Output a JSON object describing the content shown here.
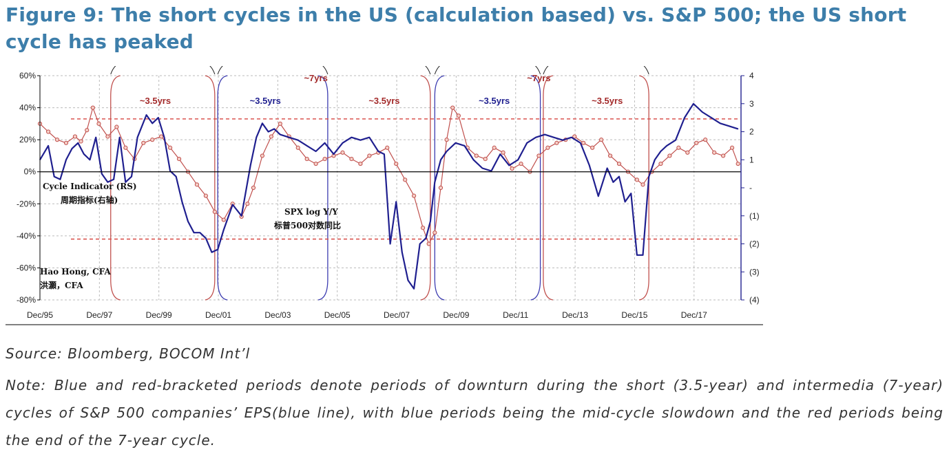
{
  "header": {
    "title": "Figure 9: The short cycles in the US (calculation based) vs. S&P 500; the US short cycle has peaked"
  },
  "footer": {
    "source": "Source: Bloomberg, BOCOM Int’l",
    "note": "Note: Blue and red-bracketed periods denote periods of downturn during the short (3.5-year) and intermedia (7-year) cycles of S&P 500 companies’ EPS(blue line), with blue periods being the mid-cycle slowdown and the red periods being the end of the 7-year cycle."
  },
  "chart_data": {
    "type": "line",
    "colors": {
      "spx": "#c0504d",
      "cycle": "#1f1f8f",
      "cycle_blue_bracket": "#3b3bb0",
      "cycle_red_bracket": "#c0504d",
      "threshold": "#d9534f"
    },
    "x_ticks": [
      "Dec/95",
      "Dec/97",
      "Dec/99",
      "Dec/01",
      "Dec/03",
      "Dec/05",
      "Dec/07",
      "Dec/09",
      "Dec/11",
      "Dec/13",
      "Dec/15",
      "Dec/17"
    ],
    "xlim": [
      1995.92,
      2019.5
    ],
    "y_left": {
      "ticks": [
        "60%",
        "40%",
        "20%",
        "0%",
        "-20%",
        "-40%",
        "-60%",
        "-80%"
      ],
      "range": [
        -80,
        60
      ]
    },
    "y_right": {
      "ticks": [
        "4",
        "3",
        "2",
        "1",
        "-",
        "(1)",
        "(2)",
        "(3)",
        "(4)"
      ],
      "range": [
        -4,
        4
      ]
    },
    "thresholds_left_pct": [
      33,
      -42
    ],
    "labels": {
      "cycle_en": "Cycle Indicator (RS)",
      "cycle_cn": "周期指标(右轴)",
      "spx_en": "SPX log Y/Y",
      "spx_cn": "标普500对数同比",
      "author_en": "Hao Hong, CFA",
      "author_cn": "洪灝，CFA"
    },
    "cycle_annotations": [
      {
        "text": "~3.5yrs",
        "x": 1999.8,
        "color": "red"
      },
      {
        "text": "~3.5yrs",
        "x": 2003.5,
        "color": "blue"
      },
      {
        "text": "~7yrs",
        "x": 2005.2,
        "color": "red"
      },
      {
        "text": "~3.5yrs",
        "x": 2007.5,
        "color": "red"
      },
      {
        "text": "~3.5yrs",
        "x": 2011.2,
        "color": "blue"
      },
      {
        "text": "~7yrs",
        "x": 2012.7,
        "color": "red"
      },
      {
        "text": "~3.5yrs",
        "x": 2015.0,
        "color": "red"
      }
    ],
    "brackets": [
      {
        "x": 1998.3,
        "side": "left",
        "color": "red"
      },
      {
        "x": 2001.8,
        "side": "right",
        "color": "red"
      },
      {
        "x": 2001.9,
        "side": "left",
        "color": "blue"
      },
      {
        "x": 2005.6,
        "side": "right",
        "color": "blue"
      },
      {
        "x": 2009.05,
        "side": "right",
        "color": "red"
      },
      {
        "x": 2009.2,
        "side": "left",
        "color": "blue"
      },
      {
        "x": 2012.75,
        "side": "right",
        "color": "blue"
      },
      {
        "x": 2012.85,
        "side": "left",
        "color": "red"
      },
      {
        "x": 2016.4,
        "side": "right",
        "color": "red"
      }
    ],
    "series": [
      {
        "name": "SPX log Y/Y",
        "axis": "left",
        "x": [
          1995.92,
          1996.2,
          1996.5,
          1996.8,
          1997.1,
          1997.3,
          1997.5,
          1997.7,
          1997.9,
          1998.2,
          1998.5,
          1998.8,
          1999.1,
          1999.4,
          1999.7,
          2000.0,
          2000.3,
          2000.6,
          2000.9,
          2001.2,
          2001.5,
          2001.8,
          2002.1,
          2002.4,
          2002.7,
          2002.9,
          2003.1,
          2003.4,
          2003.7,
          2004.0,
          2004.3,
          2004.6,
          2004.9,
          2005.2,
          2005.5,
          2005.8,
          2006.1,
          2006.4,
          2006.7,
          2007.0,
          2007.3,
          2007.6,
          2007.9,
          2008.2,
          2008.5,
          2008.8,
          2009.0,
          2009.2,
          2009.4,
          2009.6,
          2009.8,
          2010.0,
          2010.3,
          2010.6,
          2010.9,
          2011.2,
          2011.5,
          2011.8,
          2012.1,
          2012.4,
          2012.7,
          2013.0,
          2013.3,
          2013.6,
          2013.9,
          2014.2,
          2014.5,
          2014.8,
          2015.1,
          2015.4,
          2015.7,
          2016.0,
          2016.2,
          2016.5,
          2016.8,
          2017.1,
          2017.4,
          2017.7,
          2018.0,
          2018.3,
          2018.6,
          2018.9,
          2019.2,
          2019.4
        ],
        "values": [
          30,
          25,
          20,
          18,
          22,
          19,
          26,
          40,
          30,
          22,
          28,
          15,
          8,
          18,
          20,
          22,
          15,
          8,
          0,
          -8,
          -15,
          -25,
          -30,
          -20,
          -28,
          -20,
          -10,
          10,
          22,
          30,
          22,
          15,
          8,
          5,
          8,
          10,
          12,
          8,
          5,
          10,
          12,
          15,
          5,
          -5,
          -15,
          -35,
          -45,
          -38,
          -10,
          20,
          40,
          35,
          15,
          10,
          8,
          15,
          12,
          2,
          5,
          0,
          10,
          15,
          18,
          20,
          22,
          18,
          15,
          20,
          10,
          5,
          0,
          -5,
          -8,
          0,
          5,
          10,
          15,
          12,
          18,
          20,
          12,
          10,
          15,
          5
        ]
      },
      {
        "name": "Cycle Indicator (RS)",
        "axis": "right",
        "x": [
          1995.92,
          1996.2,
          1996.4,
          1996.6,
          1996.8,
          1997.0,
          1997.2,
          1997.4,
          1997.6,
          1997.8,
          1998.0,
          1998.2,
          1998.4,
          1998.6,
          1998.8,
          1999.0,
          1999.2,
          1999.5,
          1999.7,
          1999.9,
          2000.1,
          2000.3,
          2000.5,
          2000.7,
          2000.9,
          2001.1,
          2001.3,
          2001.5,
          2001.7,
          2001.9,
          2002.1,
          2002.4,
          2002.7,
          2003.0,
          2003.2,
          2003.4,
          2003.6,
          2003.8,
          2004.0,
          2004.3,
          2004.6,
          2004.9,
          2005.2,
          2005.5,
          2005.8,
          2006.1,
          2006.4,
          2006.7,
          2007.0,
          2007.3,
          2007.5,
          2007.7,
          2007.9,
          2008.1,
          2008.3,
          2008.5,
          2008.7,
          2008.9,
          2009.05,
          2009.2,
          2009.4,
          2009.6,
          2009.9,
          2010.2,
          2010.5,
          2010.8,
          2011.1,
          2011.4,
          2011.7,
          2012.0,
          2012.3,
          2012.6,
          2012.9,
          2013.2,
          2013.5,
          2013.8,
          2014.1,
          2014.4,
          2014.7,
          2015.0,
          2015.2,
          2015.4,
          2015.6,
          2015.8,
          2016.0,
          2016.2,
          2016.4,
          2016.6,
          2016.8,
          2017.0,
          2017.3,
          2017.6,
          2017.9,
          2018.2,
          2018.5,
          2018.8,
          2019.1,
          2019.4
        ],
        "values": [
          1.0,
          1.5,
          0.4,
          0.3,
          1.0,
          1.4,
          1.6,
          1.2,
          1.0,
          1.8,
          0.5,
          0.2,
          0.3,
          1.8,
          0.2,
          0.4,
          1.8,
          2.6,
          2.3,
          2.5,
          1.8,
          0.6,
          0.4,
          -0.5,
          -1.2,
          -1.6,
          -1.6,
          -1.8,
          -2.3,
          -2.2,
          -1.5,
          -0.6,
          -1.0,
          0.8,
          1.8,
          2.3,
          2.0,
          2.1,
          1.9,
          1.8,
          1.7,
          1.5,
          1.3,
          1.6,
          1.2,
          1.6,
          1.8,
          1.7,
          1.8,
          1.3,
          1.2,
          -2.0,
          -0.5,
          -2.3,
          -3.3,
          -3.6,
          -2.0,
          -1.8,
          -1.2,
          0.2,
          1.0,
          1.3,
          1.6,
          1.5,
          1.0,
          0.7,
          0.6,
          1.2,
          0.8,
          1.0,
          1.6,
          1.8,
          1.9,
          1.8,
          1.7,
          1.8,
          1.6,
          0.8,
          -0.3,
          0.7,
          0.2,
          0.4,
          -0.5,
          -0.2,
          -2.4,
          -2.4,
          0.4,
          1.0,
          1.3,
          1.5,
          1.7,
          2.5,
          3.0,
          2.7,
          2.5,
          2.3,
          2.2,
          2.1
        ]
      }
    ]
  }
}
